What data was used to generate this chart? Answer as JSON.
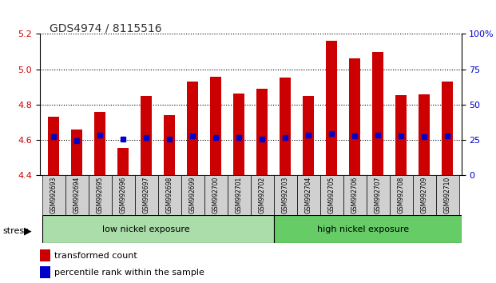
{
  "title": "GDS4974 / 8115516",
  "samples": [
    "GSM992693",
    "GSM992694",
    "GSM992695",
    "GSM992696",
    "GSM992697",
    "GSM992698",
    "GSM992699",
    "GSM992700",
    "GSM992701",
    "GSM992702",
    "GSM992703",
    "GSM992704",
    "GSM992705",
    "GSM992706",
    "GSM992707",
    "GSM992708",
    "GSM992709",
    "GSM992710"
  ],
  "bar_heights": [
    4.73,
    4.66,
    4.76,
    4.555,
    4.85,
    4.74,
    4.93,
    4.96,
    4.865,
    4.89,
    4.955,
    4.85,
    5.16,
    5.06,
    5.1,
    4.855,
    4.86,
    4.93
  ],
  "blue_dot_positions": [
    4.62,
    4.595,
    4.63,
    4.605,
    4.615,
    4.605,
    4.625,
    4.615,
    4.615,
    4.605,
    4.615,
    4.63,
    4.635,
    4.625,
    4.63,
    4.625,
    4.62,
    4.625
  ],
  "ylim_left": [
    4.4,
    5.2
  ],
  "yticks_left": [
    4.4,
    4.6,
    4.8,
    5.0,
    5.2
  ],
  "yticks_right": [
    0,
    25,
    50,
    75,
    100
  ],
  "ytick_labels_right": [
    "0",
    "25",
    "50",
    "75",
    "100%"
  ],
  "bar_color": "#cc0000",
  "dot_color": "#0000cc",
  "bar_width": 0.5,
  "group_labels": [
    "low nickel exposure",
    "high nickel exposure"
  ],
  "group_ranges": [
    0,
    9,
    18
  ],
  "stress_label": "stress",
  "legend_bar_label": "transformed count",
  "legend_dot_label": "percentile rank within the sample",
  "title_color": "#333333",
  "axis_color_left": "#cc0000",
  "axis_color_right": "#0000cc",
  "grid_linestyle": "dotted",
  "background_chart": "#ffffff",
  "background_xtick": "#cccccc",
  "background_low": "#aaddaa",
  "background_high": "#66cc66"
}
